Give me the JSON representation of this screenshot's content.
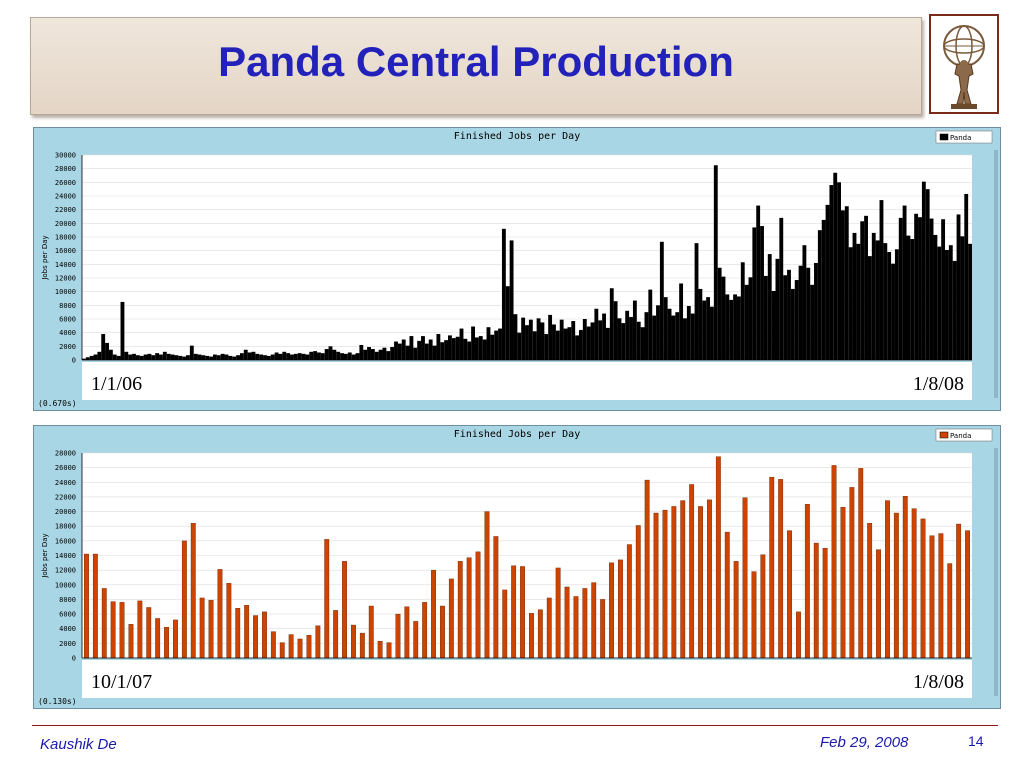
{
  "slide": {
    "title": "Panda Central Production",
    "author": "Kaushik De",
    "date": "Feb 29, 2008",
    "page": "14"
  },
  "colors": {
    "title": "#2222bb",
    "panel_bg": "#a9d6e5",
    "bar_daily": "#000000",
    "bar_weekly": "#cc4400",
    "footer_line": "#8b1a1a"
  },
  "icons": {
    "logo": "atlas-statue-icon"
  },
  "chart_data": [
    {
      "type": "bar",
      "title": "Finished Jobs per Day",
      "ylabel": "Jobs per Day",
      "legend": [
        "Panda"
      ],
      "legend_position": "top-right",
      "ylim": [
        0,
        30000
      ],
      "yticks": [
        0,
        2000,
        4000,
        6000,
        8000,
        10000,
        12000,
        14000,
        16000,
        18000,
        20000,
        22000,
        24000,
        26000,
        28000,
        30000
      ],
      "ytick_labels": [
        "0",
        "2000",
        "4000",
        "6000",
        "8000",
        "10000",
        "12000",
        "14000",
        "16000",
        "18000",
        "20000",
        "22000",
        "24000",
        "26000",
        "28000",
        "30000"
      ],
      "xrange_labels": [
        "1/1/06",
        "1/8/08"
      ],
      "timing": "(0.670s)",
      "grid": true,
      "series": [
        {
          "name": "Panda",
          "values": [
            200,
            400,
            600,
            800,
            1200,
            3800,
            2500,
            1500,
            800,
            600,
            8500,
            1200,
            800,
            900,
            700,
            600,
            800,
            900,
            700,
            1000,
            800,
            1200,
            900,
            800,
            700,
            600,
            500,
            700,
            2100,
            900,
            800,
            700,
            600,
            500,
            800,
            700,
            900,
            800,
            600,
            500,
            700,
            1000,
            1500,
            1100,
            1200,
            900,
            800,
            700,
            600,
            800,
            1100,
            900,
            1200,
            1000,
            800,
            900,
            1000,
            900,
            800,
            1200,
            1300,
            1100,
            1000,
            1600,
            2000,
            1500,
            1200,
            1000,
            900,
            1100,
            800,
            1000,
            2200,
            1500,
            1900,
            1600,
            1200,
            1500,
            1800,
            1300,
            1900,
            2700,
            2400,
            3000,
            2100,
            3500,
            1800,
            2800,
            3500,
            2400,
            3000,
            2100,
            3800,
            2600,
            2900,
            3600,
            3200,
            3400,
            4600,
            3100,
            2700,
            4900,
            3300,
            3500,
            3000,
            4800,
            3700,
            4300,
            4600,
            19200,
            10800,
            17500,
            6700,
            4000,
            6200,
            5100,
            5900,
            4200,
            6100,
            5500,
            3800,
            6600,
            5200,
            4300,
            5900,
            4600,
            4800,
            5700,
            3600,
            4400,
            6000,
            4900,
            5500,
            7500,
            5800,
            6800,
            4700,
            10500,
            8600,
            6100,
            5400,
            7200,
            6300,
            8700,
            5600,
            4800,
            7000,
            10300,
            6500,
            8000,
            17300,
            9200,
            7500,
            6500,
            7000,
            11200,
            6100,
            7900,
            6800,
            17100,
            10400,
            8700,
            9200,
            7800,
            28500,
            13500,
            12200,
            9600,
            8800,
            9600,
            9300,
            14300,
            11000,
            12100,
            19400,
            22600,
            19600,
            12300,
            15500,
            10100,
            14800,
            20800,
            12400,
            13200,
            10400,
            11700,
            13800,
            16800,
            13500,
            11000,
            14200,
            19000,
            20500,
            22700,
            25600,
            27400,
            26000,
            21900,
            22500,
            16500,
            18600,
            17000,
            20300,
            21100,
            15200,
            18600,
            17500,
            23400,
            17100,
            15800,
            14100,
            16200,
            20800,
            22600,
            18200,
            17700,
            21400,
            20900,
            26100,
            25000,
            20700,
            18300,
            16600,
            20600,
            16100,
            16800,
            14500,
            21300,
            18100,
            24300,
            17000
          ]
        }
      ]
    },
    {
      "type": "bar",
      "title": "Finished Jobs per Day",
      "ylabel": "Jobs per Day",
      "legend": [
        "Panda"
      ],
      "legend_position": "top-right",
      "ylim": [
        0,
        28000
      ],
      "yticks": [
        0,
        2000,
        4000,
        6000,
        8000,
        10000,
        12000,
        14000,
        16000,
        18000,
        20000,
        22000,
        24000,
        26000,
        28000
      ],
      "ytick_labels": [
        "0",
        "2000",
        "4000",
        "6000",
        "8000",
        "10000",
        "12000",
        "14000",
        "16000",
        "18000",
        "20000",
        "22000",
        "24000",
        "26000",
        "28000"
      ],
      "xrange_labels": [
        "10/1/07",
        "1/8/08"
      ],
      "timing": "(0.130s)",
      "grid": true,
      "series": [
        {
          "name": "Panda",
          "values": [
            14200,
            14200,
            9500,
            7700,
            7600,
            4600,
            7800,
            6900,
            5400,
            4200,
            5200,
            16000,
            18400,
            8200,
            7900,
            12100,
            10200,
            6800,
            7200,
            5800,
            6300,
            3600,
            2100,
            3200,
            2600,
            3100,
            4400,
            16200,
            6500,
            13200,
            4500,
            3400,
            7100,
            2300,
            2100,
            6000,
            7000,
            5000,
            7600,
            12000,
            7100,
            10800,
            13200,
            13700,
            14500,
            20000,
            16600,
            9300,
            12600,
            12500,
            6100,
            6600,
            8200,
            12300,
            9700,
            8400,
            9500,
            10300,
            8000,
            13000,
            13400,
            15500,
            18100,
            24300,
            19800,
            20200,
            20700,
            21500,
            23700,
            20700,
            21600,
            27500,
            17200,
            13200,
            21900,
            11800,
            14100,
            24700,
            24400,
            17400,
            6300,
            21000,
            15700,
            15000,
            26300,
            20600,
            23300,
            25900,
            18400,
            14800,
            21500,
            19800,
            22100,
            20400,
            19000,
            16700,
            17000,
            12900,
            18300,
            17400
          ]
        }
      ]
    }
  ]
}
